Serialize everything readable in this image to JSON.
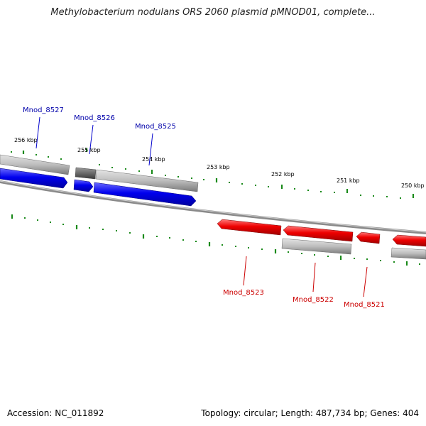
{
  "title": "Methylobacterium nodulans ORS 2060 plasmid pMNOD01, complete...",
  "footer": {
    "accession": "Accession: NC_011892",
    "summary": "Topology: circular; Length: 487,734 bp; Genes: 404"
  },
  "colors": {
    "forward_gene": "#0000ee",
    "reverse_gene": "#ee0000",
    "tick": "#1a8a1a",
    "backbone": "#8a8a8a",
    "rna_gray": "#b8b8b8",
    "rna_dark": "#6a6a6a"
  },
  "kbp_labels": [
    "256 kbp",
    "255 kbp",
    "254 kbp",
    "253 kbp",
    "252 kbp",
    "251 kbp",
    "250 kbp"
  ],
  "genes_top": [
    {
      "label": "Mnod_8527",
      "color": "#0000aa"
    },
    {
      "label": "Mnod_8526",
      "color": "#0000aa"
    },
    {
      "label": "Mnod_8525",
      "color": "#0000aa"
    }
  ],
  "genes_bottom": [
    {
      "label": "Mnod_8523",
      "color": "#cc0000"
    },
    {
      "label": "Mnod_8522",
      "color": "#cc0000"
    },
    {
      "label": "Mnod_8521",
      "color": "#cc0000"
    }
  ]
}
